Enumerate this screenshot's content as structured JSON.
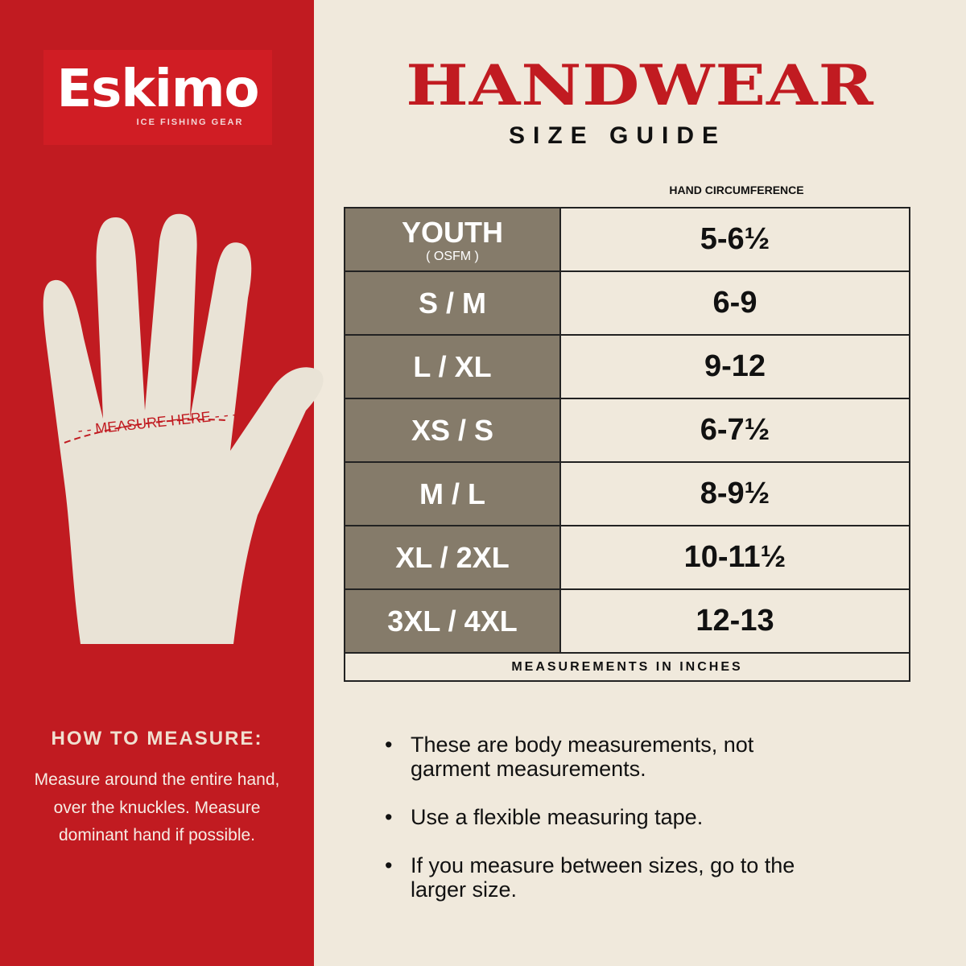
{
  "logo": {
    "brand": "Eskimo",
    "tagline": "ICE FISHING GEAR"
  },
  "hand": {
    "measure_label": "MEASURE HERE"
  },
  "title": "HANDWEAR",
  "subtitle": "SIZE GUIDE",
  "table": {
    "column_header": "HAND CIRCUMFERENCE",
    "rows": [
      {
        "size": "YOUTH",
        "note": "( OSFM )",
        "value": "5-6½"
      },
      {
        "size": "S / M",
        "value": "6-9"
      },
      {
        "size": "L / XL",
        "value": "9-12"
      },
      {
        "size": "XS / S",
        "value": "6-7½"
      },
      {
        "size": "M / L",
        "value": "8-9½"
      },
      {
        "size": "XL / 2XL",
        "value": "10-11½"
      },
      {
        "size": "3XL / 4XL",
        "value": "12-13"
      }
    ],
    "footer": "MEASUREMENTS IN INCHES"
  },
  "how_to": {
    "title": "HOW TO MEASURE:",
    "text": "Measure around the entire hand, over the knuckles. Measure dominant hand if possible."
  },
  "notes": [
    "These are body measurements, not garment measurements.",
    "Use a flexible measuring tape.",
    "If you measure between sizes, go to the larger size."
  ],
  "colors": {
    "red": "#c11b21",
    "background": "#f0e9dc",
    "size_cell": "#857b6a"
  }
}
